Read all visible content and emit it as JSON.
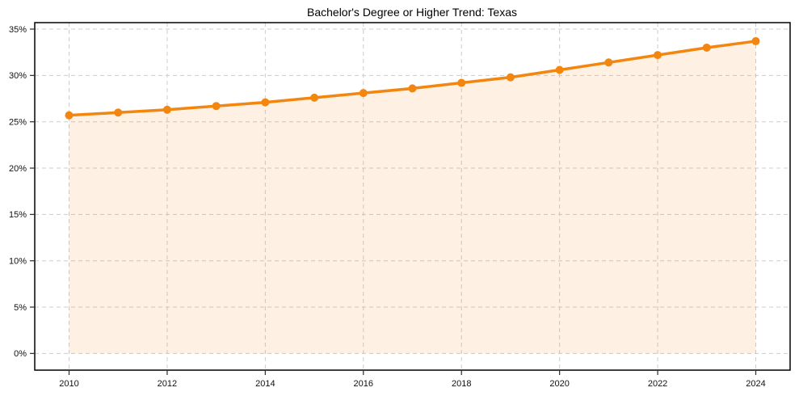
{
  "chart_data": {
    "type": "line",
    "title": "Bachelor's Degree or Higher Trend: Texas",
    "x": [
      2010,
      2011,
      2012,
      2013,
      2014,
      2015,
      2016,
      2017,
      2018,
      2019,
      2020,
      2021,
      2022,
      2023,
      2024
    ],
    "series": [
      {
        "name": "Bachelor's Degree or Higher",
        "values": [
          25.7,
          26.0,
          26.3,
          26.7,
          27.1,
          27.6,
          28.1,
          28.6,
          29.2,
          29.8,
          30.6,
          31.4,
          32.2,
          33.0,
          33.7
        ]
      }
    ],
    "xlabel": "",
    "ylabel": "",
    "xlim": [
      2009.3,
      2024.7
    ],
    "ylim": [
      -1.8,
      35.7
    ],
    "x_ticks": [
      2010,
      2012,
      2014,
      2016,
      2018,
      2020,
      2022,
      2024
    ],
    "x_tick_labels": [
      "2010",
      "2012",
      "2014",
      "2016",
      "2018",
      "2020",
      "2022",
      "2024"
    ],
    "y_ticks": [
      0,
      5,
      10,
      15,
      20,
      25,
      30,
      35
    ],
    "y_tick_labels": [
      "0%",
      "5%",
      "10%",
      "15%",
      "20%",
      "25%",
      "30%",
      "35%"
    ],
    "grid": "dashed",
    "legend_position": "none",
    "marker": "circle",
    "area_fill": true
  },
  "colors": {
    "line": "#f3860f",
    "marker": "#f3860f",
    "area_fill": "rgba(243, 134, 15, 0.12)",
    "grid": "#cccccc",
    "axis": "#000000",
    "tick": "#333333",
    "text": "#000000",
    "background": "#ffffff"
  }
}
